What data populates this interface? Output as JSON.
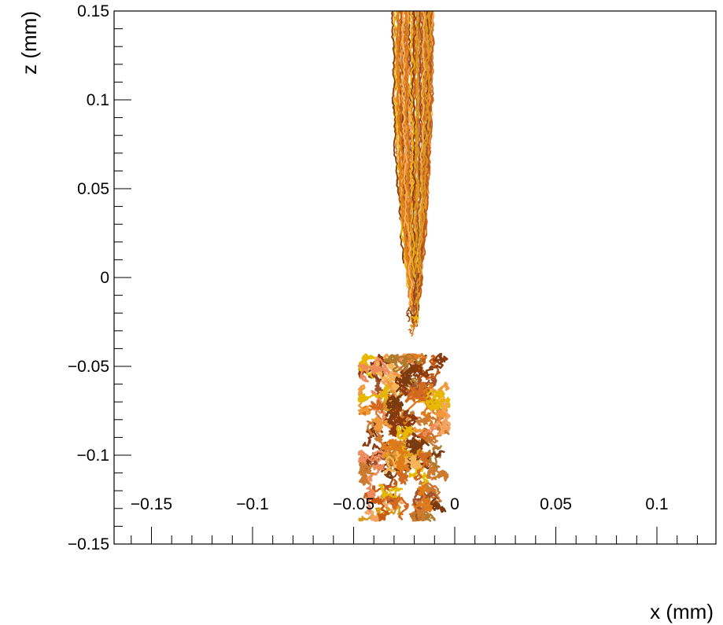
{
  "chart_data": {
    "type": "scatter",
    "title": "",
    "xlabel": "x (mm)",
    "ylabel": "z (mm)",
    "xlim": [
      -0.2,
      0.13
    ],
    "ylim": [
      -0.15,
      0.15
    ],
    "x_ticks": [
      "-0.15",
      "-0.1",
      "-0.05",
      "0",
      "0.05",
      "0.1"
    ],
    "x_tick_values": [
      -0.15,
      -0.1,
      -0.05,
      0,
      0.05,
      0.1
    ],
    "y_ticks": [
      "0.15",
      "0.1",
      "0.05",
      "0",
      "-0.05",
      "-0.1",
      "-0.15"
    ],
    "y_tick_values": [
      0.15,
      0.1,
      0.05,
      0,
      -0.05,
      -0.1,
      -0.15
    ],
    "grid": false,
    "legend": "none",
    "annotation": "Simulated charged-particle tracks: a narrow bundle of trajectories entering from the top (z = 0.15 mm) and ending near z = -0.03 mm at x = -0.02 mm, plus a separate cluster of random-walk tracks between z = -0.04 and z = -0.14 mm centred near x = -0.025 mm.",
    "series": [
      {
        "values": [
          [
            -0.0305,
            0.15
          ],
          [
            -0.03,
            0.12
          ],
          [
            -0.029,
            0.09
          ],
          [
            -0.028,
            0.06
          ],
          [
            -0.026,
            0.03
          ],
          [
            -0.024,
            0.0
          ],
          [
            -0.021,
            -0.02
          ],
          [
            -0.02,
            -0.03
          ],
          [
            -0.011,
            0.15
          ],
          [
            -0.012,
            0.12
          ],
          [
            -0.013,
            0.09
          ],
          [
            -0.014,
            0.06
          ],
          [
            -0.015,
            0.03
          ],
          [
            -0.017,
            0.0
          ],
          [
            -0.019,
            -0.02
          ],
          [
            -0.02,
            -0.03
          ]
        ]
      },
      {
        "values": [
          [
            -0.04,
            -0.06
          ],
          [
            -0.035,
            -0.045
          ],
          [
            -0.025,
            -0.042
          ],
          [
            -0.015,
            -0.048
          ],
          [
            -0.005,
            -0.065
          ],
          [
            -0.015,
            -0.08
          ],
          [
            -0.035,
            -0.09
          ],
          [
            -0.04,
            -0.11
          ],
          [
            -0.035,
            -0.13
          ],
          [
            -0.025,
            -0.137
          ],
          [
            -0.01,
            -0.13
          ],
          [
            -0.005,
            -0.115
          ],
          [
            -0.012,
            -0.095
          ],
          [
            -0.02,
            -0.07
          ]
        ]
      }
    ],
    "colors": [
      "#8b3a0e",
      "#c85a12",
      "#e07b1a",
      "#f29a3a",
      "#f7b55a",
      "#d99a1c",
      "#e6b800",
      "#b07a2a",
      "#7a3b10",
      "#ef8a5a",
      "#a0522d",
      "#f4a460",
      "#d2691e",
      "#cc7a30"
    ]
  }
}
